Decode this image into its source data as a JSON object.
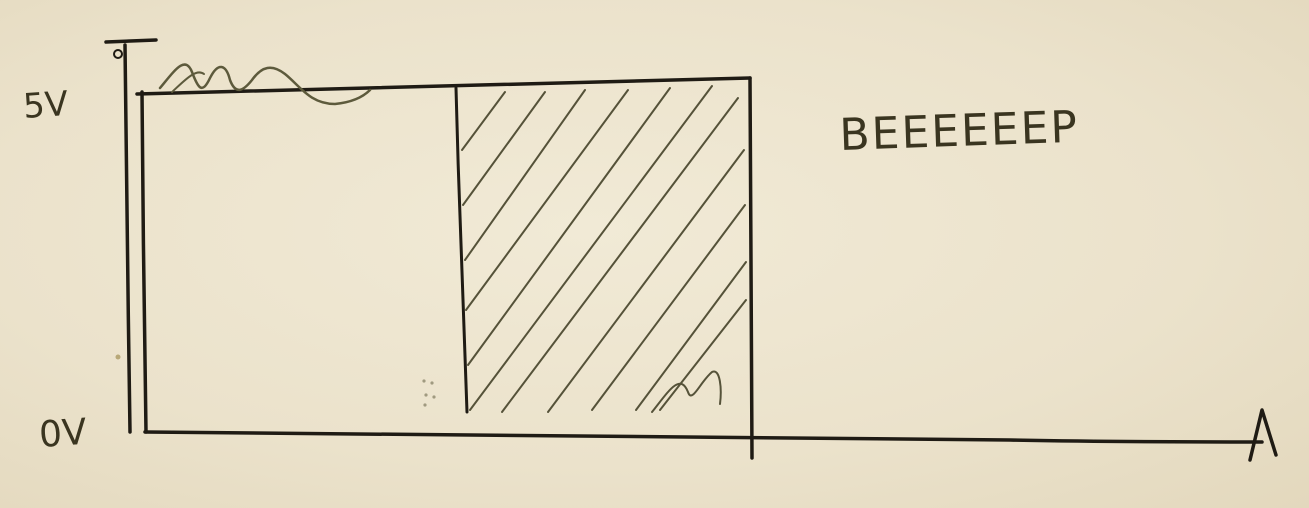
{
  "diagram": {
    "labels": {
      "high_voltage": "5V",
      "low_voltage": "0V",
      "annotation": "BEEEEEEP"
    },
    "colors": {
      "paper": "#ece4cf",
      "ink": "#1f1b14",
      "pencil": "#4a4630"
    }
  }
}
